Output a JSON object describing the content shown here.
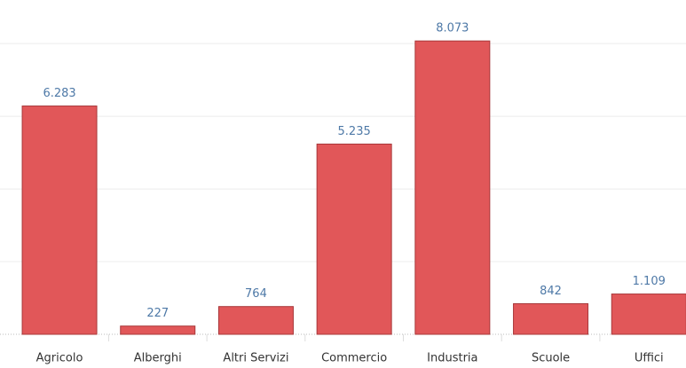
{
  "chart_data": {
    "type": "bar",
    "categories": [
      "Agricolo",
      "Alberghi",
      "Altri Servizi",
      "Commercio",
      "Industria",
      "Scuole",
      "Uffici"
    ],
    "values": [
      6283,
      227,
      764,
      5235,
      8073,
      842,
      1109
    ],
    "value_labels": [
      "6.283",
      "227",
      "764",
      "5.235",
      "8.073",
      "842",
      "1.109"
    ],
    "color": "#e15759",
    "ylim": [
      0,
      9200
    ],
    "yticks": [
      0,
      2000,
      4000,
      6000,
      8000
    ],
    "grid": true
  }
}
